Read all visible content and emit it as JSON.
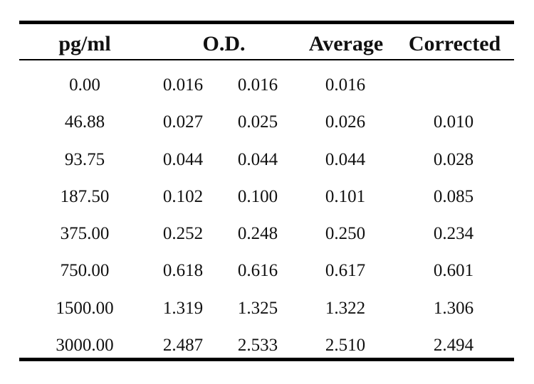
{
  "table": {
    "headers": {
      "concentration": "pg/ml",
      "od": "O.D.",
      "average": "Average",
      "corrected": "Corrected"
    },
    "rows": [
      {
        "concentration": "0.00",
        "od1": "0.016",
        "od2": "0.016",
        "average": "0.016",
        "corrected": ""
      },
      {
        "concentration": "46.88",
        "od1": "0.027",
        "od2": "0.025",
        "average": "0.026",
        "corrected": "0.010"
      },
      {
        "concentration": "93.75",
        "od1": "0.044",
        "od2": "0.044",
        "average": "0.044",
        "corrected": "0.028"
      },
      {
        "concentration": "187.50",
        "od1": "0.102",
        "od2": "0.100",
        "average": "0.101",
        "corrected": "0.085"
      },
      {
        "concentration": "375.00",
        "od1": "0.252",
        "od2": "0.248",
        "average": "0.250",
        "corrected": "0.234"
      },
      {
        "concentration": "750.00",
        "od1": "0.618",
        "od2": "0.616",
        "average": "0.617",
        "corrected": "0.601"
      },
      {
        "concentration": "1500.00",
        "od1": "1.319",
        "od2": "1.325",
        "average": "1.322",
        "corrected": "1.306"
      },
      {
        "concentration": "3000.00",
        "od1": "2.487",
        "od2": "2.533",
        "average": "2.510",
        "corrected": "2.494"
      }
    ]
  }
}
